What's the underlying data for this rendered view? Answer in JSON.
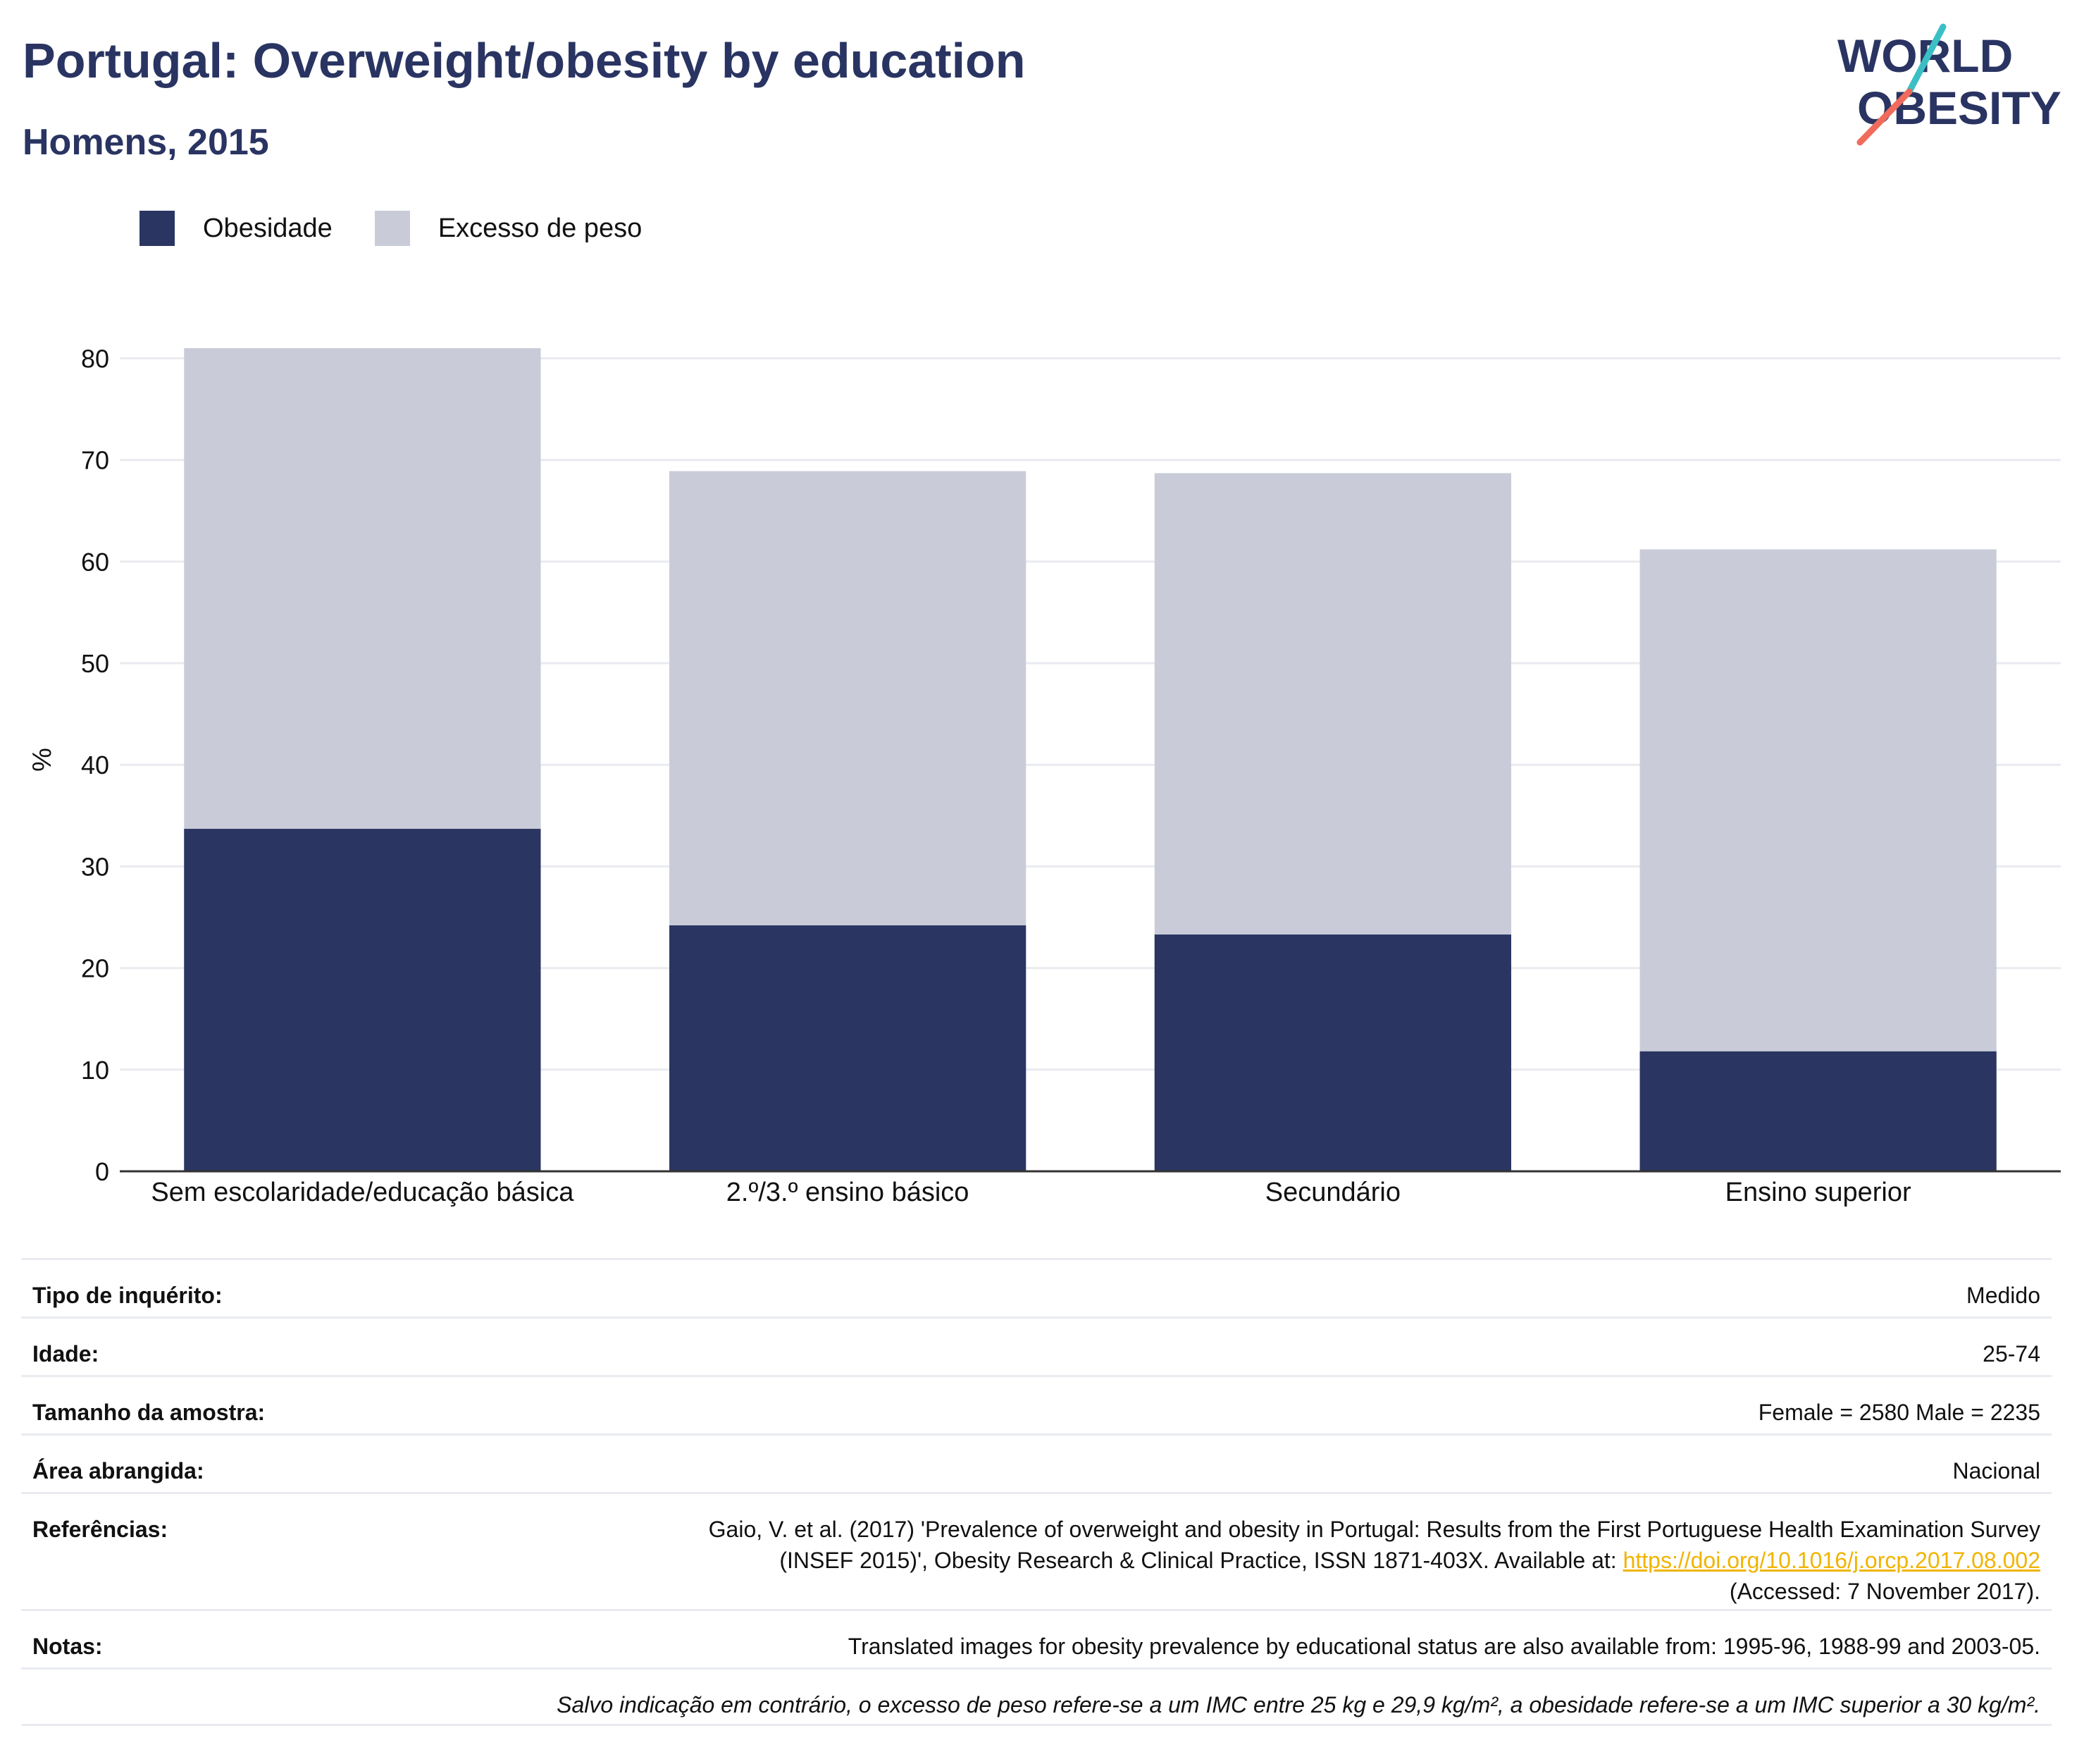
{
  "header": {
    "title": "Portugal: Overweight/obesity by education",
    "subtitle": "Homens, 2015"
  },
  "logo": {
    "line1": "WORLD",
    "line2": "OBESITY",
    "colors": {
      "text": "#2a3462",
      "slash_top": "#3bbfc4",
      "slash_bottom": "#f06b5b"
    }
  },
  "colors": {
    "obesity": "#2a3562",
    "overweight": "#c9ccd8",
    "grid": "#e9ebf1",
    "axis": "#333333"
  },
  "chart_data": {
    "type": "bar",
    "stacked": "overlay",
    "categories": [
      "Sem escolaridade/educação básica",
      "2.º/3.º ensino básico",
      "Secundário",
      "Ensino superior"
    ],
    "series": [
      {
        "name": "Excesso de peso",
        "values": [
          81.0,
          68.9,
          68.7,
          61.2
        ]
      },
      {
        "name": "Obesidade",
        "values": [
          33.7,
          24.2,
          23.3,
          11.8
        ]
      }
    ],
    "legend": [
      "Obesidade",
      "Excesso de peso"
    ],
    "legend_position": "top-left",
    "ylabel": "%",
    "xlabel": "",
    "ylim": [
      0,
      80
    ],
    "yticks": [
      0,
      10,
      20,
      30,
      40,
      50,
      60,
      70,
      80
    ],
    "grid": true
  },
  "info": {
    "survey_type": {
      "label": "Tipo de inquérito:",
      "value": "Medido"
    },
    "age": {
      "label": "Idade:",
      "value": "25-74"
    },
    "sample_size": {
      "label": "Tamanho da amostra:",
      "value": "Female = 2580 Male = 2235"
    },
    "area": {
      "label": "Área abrangida:",
      "value": "Nacional"
    },
    "references": {
      "label": "Referências:",
      "line1": "Gaio, V. et al. (2017) 'Prevalence of overweight and obesity in Portugal: Results from the First Portuguese Health Examination Survey",
      "line2": "(INSEF 2015)', Obesity Research & Clinical Practice, ISSN 1871-403X. Available at: ",
      "link": "https://doi.org/10.1016/j.orcp.2017.08.002",
      "line3": "(Accessed: 7 November 2017)."
    },
    "notes": {
      "label": "Notas:",
      "value": "Translated images for obesity prevalence by educational status are also available from: 1995-96, 1988-99 and 2003-05."
    },
    "footnote": "Salvo indicação em contrário, o excesso de peso refere-se a um IMC entre 25 kg e 29,9 kg/m², a obesidade refere-se a um IMC superior a 30 kg/m²."
  }
}
